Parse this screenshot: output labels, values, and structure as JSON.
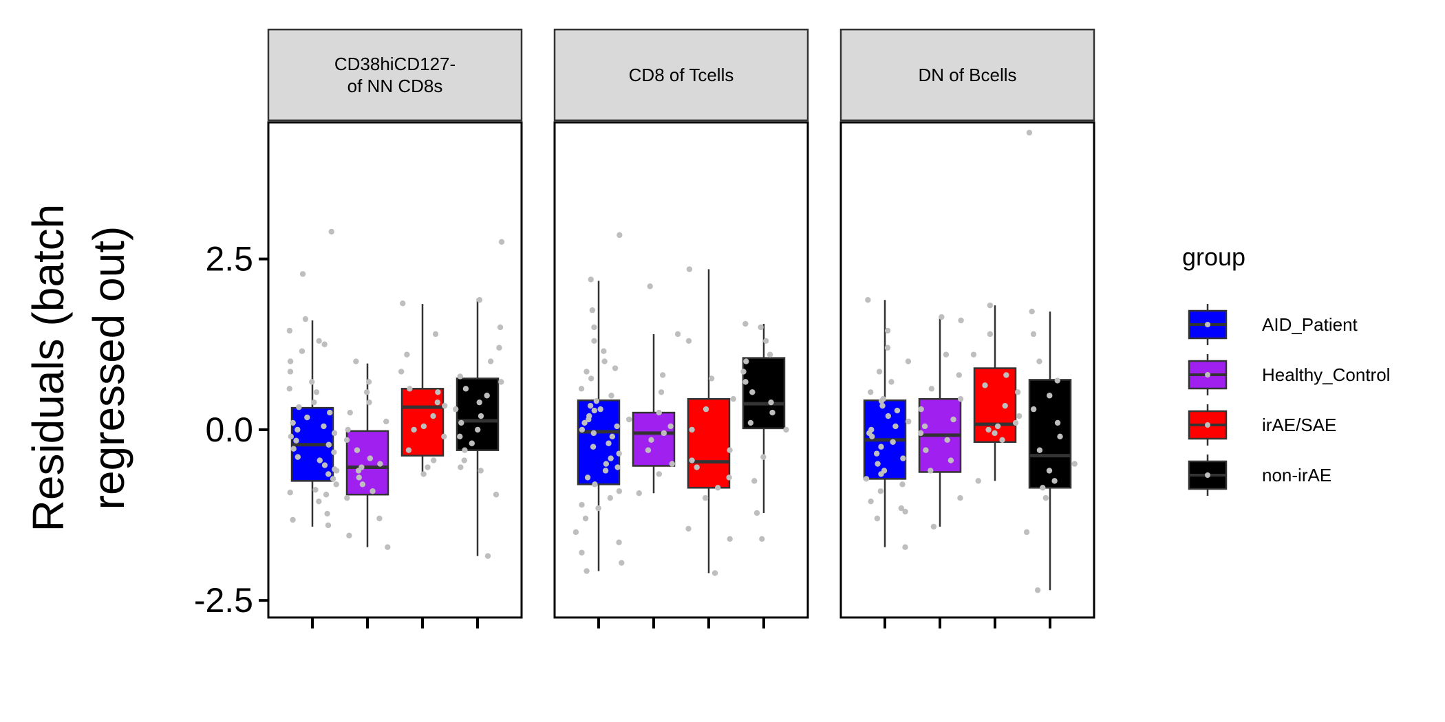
{
  "chart_data": {
    "type": "boxplot",
    "facets": [
      {
        "title_lines": [
          "CD38hiCD127-",
          "of NN CD8s"
        ]
      },
      {
        "title_lines": [
          "CD8 of Tcells"
        ]
      },
      {
        "title_lines": [
          "DN of Bcells"
        ]
      }
    ],
    "ylabel_lines": [
      "Residuals (batch",
      "regressed out)"
    ],
    "xlabel": "",
    "ylim": [
      -2.75,
      4.5
    ],
    "yticks": [
      {
        "value": -2.5,
        "label": "-2.5"
      },
      {
        "value": 0.0,
        "label": "0.0"
      },
      {
        "value": 2.5,
        "label": "2.5"
      }
    ],
    "legend": {
      "title": "group",
      "placement": "right",
      "entries": [
        "AID_Patient",
        "Healthy_Control",
        "irAE/SAE",
        "non-irAE"
      ]
    },
    "group_colors": {
      "AID_Patient": "#0000FF",
      "Healthy_Control": "#A020F0",
      "irAE/SAE": "#FF0000",
      "non-irAE": "#000000"
    },
    "point_color": "#BEBEBE",
    "grid": false,
    "boxes": [
      [
        {
          "group": "AID_Patient",
          "q1": -0.75,
          "median": -0.22,
          "q3": 0.32,
          "lower": -1.42,
          "upper": 1.6
        },
        {
          "group": "Healthy_Control",
          "q1": -0.95,
          "median": -0.55,
          "q3": -0.02,
          "lower": -1.72,
          "upper": 0.97
        },
        {
          "group": "irAE/SAE",
          "q1": -0.38,
          "median": 0.33,
          "q3": 0.6,
          "lower": -0.68,
          "upper": 1.84
        },
        {
          "group": "non-irAE",
          "q1": -0.3,
          "median": 0.13,
          "q3": 0.75,
          "lower": -1.85,
          "upper": 1.92
        }
      ],
      [
        {
          "group": "AID_Patient",
          "q1": -0.8,
          "median": -0.03,
          "q3": 0.43,
          "lower": -2.07,
          "upper": 2.18
        },
        {
          "group": "Healthy_Control",
          "q1": -0.53,
          "median": -0.05,
          "q3": 0.25,
          "lower": -0.93,
          "upper": 1.4
        },
        {
          "group": "irAE/SAE",
          "q1": -0.85,
          "median": -0.47,
          "q3": 0.45,
          "lower": -2.1,
          "upper": 2.35
        },
        {
          "group": "non-irAE",
          "q1": 0.02,
          "median": 0.38,
          "q3": 1.05,
          "lower": -1.22,
          "upper": 1.55
        }
      ],
      [
        {
          "group": "AID_Patient",
          "q1": -0.72,
          "median": -0.15,
          "q3": 0.43,
          "lower": -1.72,
          "upper": 1.9
        },
        {
          "group": "Healthy_Control",
          "q1": -0.62,
          "median": -0.08,
          "q3": 0.45,
          "lower": -1.42,
          "upper": 1.65
        },
        {
          "group": "irAE/SAE",
          "q1": -0.18,
          "median": 0.08,
          "q3": 0.9,
          "lower": -0.75,
          "upper": 1.82
        },
        {
          "group": "non-irAE",
          "q1": -0.85,
          "median": -0.38,
          "q3": 0.73,
          "lower": -2.35,
          "upper": 1.73
        }
      ]
    ],
    "points": [
      [
        [
          -1.4,
          -1.32,
          -1.23,
          -1.05,
          -0.95,
          -0.88,
          -0.8,
          -0.72,
          -0.65,
          -0.58,
          -0.52,
          -0.45,
          -0.4,
          -0.33,
          -0.28,
          -0.22,
          -0.16,
          -0.1,
          -0.05,
          0.0,
          0.05,
          0.1,
          0.18,
          0.25,
          0.33,
          0.4,
          0.55,
          0.7,
          0.85,
          1.0,
          1.15,
          1.3,
          1.45,
          1.62,
          1.25,
          0.6,
          -0.6,
          -0.92,
          2.28,
          2.9
        ],
        [
          -1.72,
          -1.55,
          -1.3,
          -1.0,
          -0.9,
          -0.8,
          -0.7,
          -0.6,
          -0.5,
          -0.42,
          -0.3,
          -0.15,
          0.0,
          0.12,
          0.25,
          0.4,
          0.55,
          0.7,
          1.0,
          -0.55
        ],
        [
          -0.65,
          -0.55,
          -0.45,
          -0.3,
          -0.1,
          0.0,
          0.05,
          0.2,
          0.35,
          0.4,
          0.55,
          0.6,
          0.85,
          1.1,
          1.4,
          1.85
        ],
        [
          -1.85,
          -0.95,
          -0.6,
          -0.45,
          -0.3,
          -0.2,
          -0.1,
          0.0,
          0.1,
          0.2,
          0.3,
          0.4,
          0.5,
          0.6,
          0.7,
          0.78,
          1.0,
          1.2,
          1.5,
          1.9,
          2.75,
          -0.55
        ]
      ],
      [
        [
          -2.07,
          -1.95,
          -1.8,
          -1.65,
          -1.5,
          -1.3,
          -1.15,
          -1.0,
          -0.9,
          -0.8,
          -0.7,
          -0.6,
          -0.5,
          -0.42,
          -0.35,
          -0.25,
          -0.2,
          -0.1,
          -0.05,
          0.0,
          0.05,
          0.1,
          0.15,
          0.2,
          0.28,
          0.35,
          0.42,
          0.5,
          0.6,
          0.75,
          0.9,
          1.0,
          1.15,
          1.3,
          1.5,
          1.75,
          2.2,
          2.85,
          -1.1,
          0.85,
          -0.55,
          0.3
        ],
        [
          -0.93,
          -0.65,
          -0.5,
          -0.3,
          -0.15,
          -0.05,
          0.05,
          0.15,
          0.25,
          0.55,
          0.8,
          1.4,
          2.1
        ],
        [
          -2.1,
          -1.6,
          -1.45,
          -1.0,
          -0.85,
          -0.7,
          -0.55,
          -0.45,
          -0.3,
          0.0,
          0.3,
          0.45,
          0.75,
          1.3,
          2.35
        ],
        [
          -1.6,
          -1.22,
          -0.75,
          -0.4,
          0.0,
          0.1,
          0.25,
          0.4,
          0.55,
          0.7,
          0.85,
          1.0,
          1.1,
          1.3,
          1.55,
          1.5
        ]
      ],
      [
        [
          -1.72,
          -1.3,
          -1.2,
          -1.05,
          -0.9,
          -0.8,
          -0.72,
          -0.6,
          -0.5,
          -0.42,
          -0.35,
          -0.25,
          -0.18,
          -0.1,
          -0.05,
          0.0,
          0.05,
          0.12,
          0.2,
          0.28,
          0.35,
          0.42,
          0.55,
          0.7,
          0.85,
          1.0,
          1.2,
          1.45,
          1.9,
          -1.15,
          0.45,
          -0.65
        ],
        [
          -1.42,
          -1.0,
          -0.6,
          -0.45,
          -0.3,
          -0.15,
          -0.05,
          0.05,
          0.15,
          0.3,
          0.45,
          0.6,
          0.8,
          1.1,
          1.6,
          1.65
        ],
        [
          -0.75,
          -0.15,
          -0.05,
          0.05,
          0.1,
          0.2,
          0.35,
          0.55,
          0.65,
          0.8,
          1.1,
          1.4,
          1.82,
          0.0
        ],
        [
          -2.35,
          -1.5,
          -1.0,
          -0.85,
          -0.75,
          -0.6,
          -0.5,
          -0.3,
          -0.1,
          0.1,
          0.3,
          0.5,
          0.72,
          1.0,
          1.4,
          1.73,
          4.35
        ]
      ]
    ]
  }
}
